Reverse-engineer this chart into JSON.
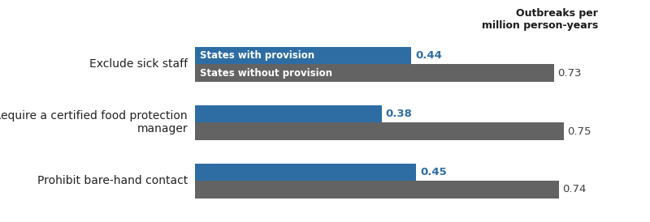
{
  "categories": [
    "Exclude sick staff",
    "Require a certified food protection\nmanager",
    "Prohibit bare-hand contact"
  ],
  "with_provision": [
    0.44,
    0.38,
    0.45
  ],
  "without_provision": [
    0.73,
    0.75,
    0.74
  ],
  "color_with": "#2E6DA4",
  "color_without": "#636363",
  "color_label_with": "#2E6DA4",
  "color_label_without": "#404040",
  "label_with": "States with provision",
  "label_without": "States without provision",
  "annotation_title": "Outbreaks per\nmillion person-years",
  "x_max": 0.82,
  "bar_height": 0.3,
  "background_color": "#FFFFFF",
  "label_fontsize": 10,
  "annotation_fontsize": 9,
  "value_fontsize": 9.5,
  "group_centers": [
    2.0,
    1.0,
    0.0
  ]
}
